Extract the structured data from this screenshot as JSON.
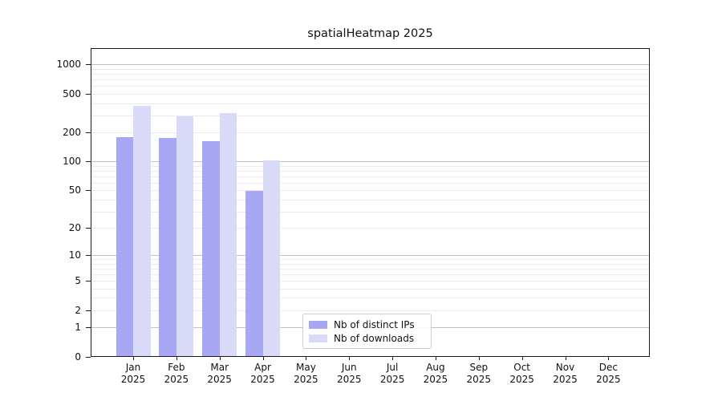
{
  "chart_data": {
    "type": "bar",
    "title": "spatialHeatmap 2025",
    "x_categories": [
      "Jan",
      "Feb",
      "Mar",
      "Apr",
      "May",
      "Jun",
      "Jul",
      "Aug",
      "Sep",
      "Oct",
      "Nov",
      "Dec"
    ],
    "x_year": "2025",
    "series": [
      {
        "name": "Nb of distinct IPs",
        "color": "#a7a7f3",
        "values": [
          176,
          174,
          160,
          49,
          null,
          null,
          null,
          null,
          null,
          null,
          null,
          null
        ]
      },
      {
        "name": "Nb of downloads",
        "color": "#d9d9f8",
        "values": [
          371,
          293,
          312,
          101,
          null,
          null,
          null,
          null,
          null,
          null,
          null,
          null
        ]
      }
    ],
    "y_axis": {
      "ticks": [
        0,
        1,
        2,
        5,
        10,
        20,
        50,
        100,
        200,
        500,
        1000
      ],
      "scale": "log10(value+1)",
      "ylim": [
        0,
        1400
      ]
    },
    "grid": {
      "orientation": "horizontal",
      "major_values": [
        1,
        10,
        100,
        1000
      ],
      "minor_multipliers": [
        2,
        3,
        4,
        5,
        6,
        7,
        8,
        9
      ],
      "major_color": "#c2c2c2",
      "minor_color": "#ebebeb"
    },
    "legend_position": "bottom-center"
  },
  "colors": {
    "background": "#ffffff",
    "spine": "#1a1a1a",
    "text": "#111111"
  }
}
